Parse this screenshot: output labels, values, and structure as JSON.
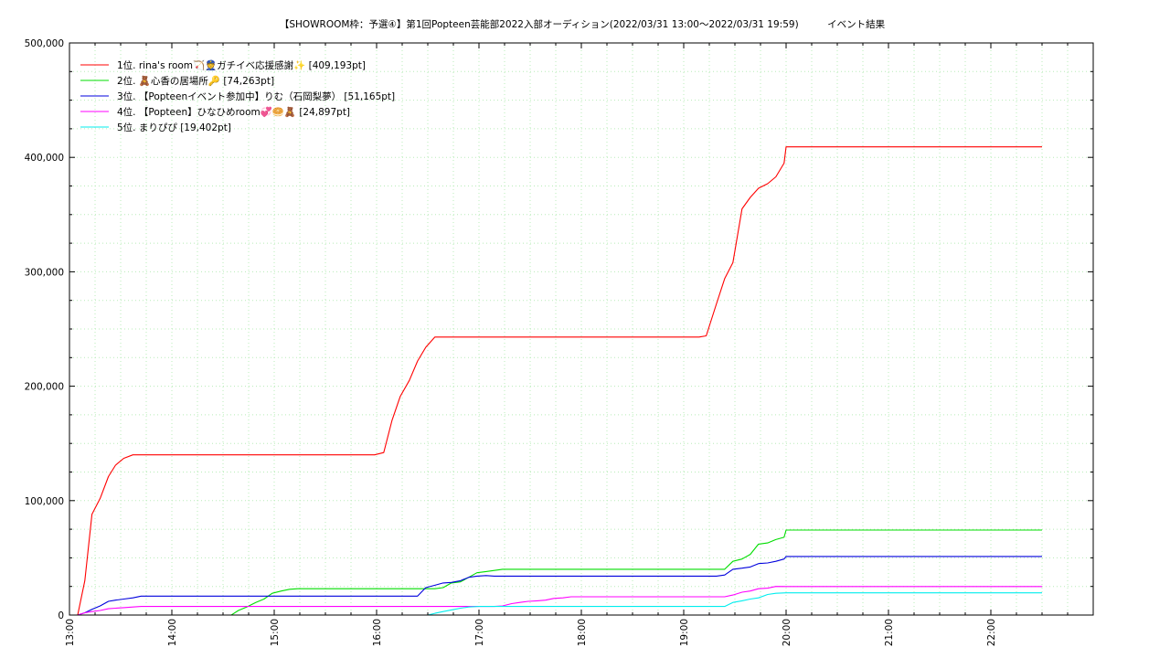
{
  "chart_data": {
    "type": "line",
    "title": "【SHOWROOM枠：予選④】第1回Popteen芸能部2022入部オーディション(2022/03/31 13:00〜2022/03/31 19:59)　　　イベント結果",
    "xlabel": "",
    "ylabel": "",
    "x_range_hours": [
      13.0,
      23.0
    ],
    "ylim": [
      0,
      500000
    ],
    "x_ticks": [
      "13:00",
      "14:00",
      "15:00",
      "16:00",
      "17:00",
      "18:00",
      "19:00",
      "20:00",
      "21:00",
      "22:00"
    ],
    "y_ticks": [
      "0",
      "100,000",
      "200,000",
      "300,000",
      "400,000",
      "500,000"
    ],
    "grid": true,
    "legend_position": "top-left",
    "series": [
      {
        "name": "1位. rina's room🏹👮ガチイベ応援感謝✨ [409,193pt]",
        "color": "#ff0000",
        "points": [
          [
            13.08,
            0
          ],
          [
            13.15,
            30000
          ],
          [
            13.22,
            88000
          ],
          [
            13.3,
            102000
          ],
          [
            13.38,
            121000
          ],
          [
            13.45,
            131000
          ],
          [
            13.53,
            137000
          ],
          [
            13.62,
            140000
          ],
          [
            14.0,
            140000
          ],
          [
            15.0,
            140000
          ],
          [
            15.98,
            140000
          ],
          [
            16.07,
            142000
          ],
          [
            16.15,
            170000
          ],
          [
            16.23,
            191000
          ],
          [
            16.32,
            205000
          ],
          [
            16.4,
            222000
          ],
          [
            16.48,
            234000
          ],
          [
            16.57,
            243000
          ],
          [
            17.0,
            243000
          ],
          [
            18.0,
            243000
          ],
          [
            19.0,
            243000
          ],
          [
            19.15,
            243000
          ],
          [
            19.22,
            244000
          ],
          [
            19.32,
            272000
          ],
          [
            19.4,
            294000
          ],
          [
            19.48,
            308000
          ],
          [
            19.57,
            355000
          ],
          [
            19.65,
            365000
          ],
          [
            19.73,
            373000
          ],
          [
            19.82,
            377000
          ],
          [
            19.9,
            383000
          ],
          [
            19.98,
            395000
          ],
          [
            20.0,
            409193
          ],
          [
            21.0,
            409193
          ],
          [
            22.0,
            409193
          ],
          [
            22.5,
            409193
          ]
        ]
      },
      {
        "name": "2位. 🧸心香の居場所🔑 [74,263pt]",
        "color": "#00dd00",
        "points": [
          [
            14.58,
            0
          ],
          [
            14.65,
            4000
          ],
          [
            14.73,
            7000
          ],
          [
            14.82,
            11000
          ],
          [
            14.9,
            14000
          ],
          [
            14.98,
            19000
          ],
          [
            15.07,
            21000
          ],
          [
            15.15,
            22500
          ],
          [
            15.23,
            23000
          ],
          [
            16.0,
            23000
          ],
          [
            16.57,
            23000
          ],
          [
            16.65,
            24000
          ],
          [
            16.73,
            28000
          ],
          [
            16.82,
            29000
          ],
          [
            16.9,
            33000
          ],
          [
            16.98,
            37000
          ],
          [
            17.07,
            38000
          ],
          [
            17.15,
            39000
          ],
          [
            17.23,
            40000
          ],
          [
            18.0,
            40000
          ],
          [
            19.0,
            40000
          ],
          [
            19.4,
            40000
          ],
          [
            19.48,
            47000
          ],
          [
            19.57,
            49000
          ],
          [
            19.65,
            53000
          ],
          [
            19.73,
            62000
          ],
          [
            19.82,
            63000
          ],
          [
            19.9,
            66000
          ],
          [
            19.98,
            68000
          ],
          [
            20.0,
            74263
          ],
          [
            21.0,
            74263
          ],
          [
            22.0,
            74263
          ],
          [
            22.5,
            74263
          ]
        ]
      },
      {
        "name": "3位. 【Popteenイベント参加中】りむ（石岡梨夢） [51,165pt]",
        "color": "#0000dd",
        "points": [
          [
            13.08,
            0
          ],
          [
            13.15,
            2000
          ],
          [
            13.22,
            5000
          ],
          [
            13.3,
            8000
          ],
          [
            13.38,
            12000
          ],
          [
            13.45,
            13000
          ],
          [
            13.53,
            14000
          ],
          [
            13.62,
            15000
          ],
          [
            13.7,
            16500
          ],
          [
            14.0,
            16500
          ],
          [
            15.0,
            16500
          ],
          [
            16.0,
            16500
          ],
          [
            16.4,
            16500
          ],
          [
            16.48,
            24000
          ],
          [
            16.57,
            26000
          ],
          [
            16.65,
            28000
          ],
          [
            16.73,
            28500
          ],
          [
            16.82,
            30000
          ],
          [
            16.9,
            33000
          ],
          [
            16.98,
            34000
          ],
          [
            17.07,
            34500
          ],
          [
            17.15,
            34000
          ],
          [
            18.0,
            34000
          ],
          [
            19.0,
            34000
          ],
          [
            19.32,
            34000
          ],
          [
            19.4,
            35000
          ],
          [
            19.48,
            40000
          ],
          [
            19.57,
            41000
          ],
          [
            19.65,
            42000
          ],
          [
            19.73,
            45000
          ],
          [
            19.82,
            45500
          ],
          [
            19.9,
            47000
          ],
          [
            19.98,
            49000
          ],
          [
            20.0,
            51165
          ],
          [
            21.0,
            51165
          ],
          [
            22.0,
            51165
          ],
          [
            22.5,
            51165
          ]
        ]
      },
      {
        "name": "4位. 【Popteen】ひなひめroom💞🥯🧸 [24,897pt]",
        "color": "#ff00ff",
        "points": [
          [
            13.08,
            0
          ],
          [
            13.15,
            2000
          ],
          [
            13.22,
            3000
          ],
          [
            13.3,
            4000
          ],
          [
            13.38,
            5500
          ],
          [
            13.45,
            6000
          ],
          [
            13.53,
            6500
          ],
          [
            13.62,
            7000
          ],
          [
            13.7,
            7500
          ],
          [
            14.0,
            7500
          ],
          [
            15.0,
            7500
          ],
          [
            16.0,
            7500
          ],
          [
            17.0,
            7500
          ],
          [
            17.15,
            7500
          ],
          [
            17.23,
            8000
          ],
          [
            17.32,
            10000
          ],
          [
            17.4,
            11000
          ],
          [
            17.48,
            12000
          ],
          [
            17.57,
            12500
          ],
          [
            17.65,
            13000
          ],
          [
            17.73,
            14500
          ],
          [
            17.82,
            15000
          ],
          [
            17.9,
            16000
          ],
          [
            18.0,
            16000
          ],
          [
            19.0,
            16000
          ],
          [
            19.4,
            16000
          ],
          [
            19.48,
            17500
          ],
          [
            19.57,
            20000
          ],
          [
            19.65,
            21000
          ],
          [
            19.73,
            23000
          ],
          [
            19.82,
            23500
          ],
          [
            19.9,
            25000
          ],
          [
            20.0,
            24897
          ],
          [
            21.0,
            24897
          ],
          [
            22.0,
            24897
          ],
          [
            22.5,
            24897
          ]
        ]
      },
      {
        "name": "5位. まりぴぴ [19,402pt]",
        "color": "#00eeee",
        "points": [
          [
            16.5,
            0
          ],
          [
            16.57,
            1500
          ],
          [
            16.65,
            3000
          ],
          [
            16.73,
            4500
          ],
          [
            16.82,
            6000
          ],
          [
            16.9,
            7000
          ],
          [
            17.0,
            7500
          ],
          [
            18.0,
            7500
          ],
          [
            19.0,
            7500
          ],
          [
            19.4,
            7500
          ],
          [
            19.48,
            11000
          ],
          [
            19.57,
            12500
          ],
          [
            19.65,
            14000
          ],
          [
            19.73,
            15000
          ],
          [
            19.82,
            18000
          ],
          [
            19.9,
            19000
          ],
          [
            20.0,
            19402
          ],
          [
            21.0,
            19402
          ],
          [
            22.0,
            19402
          ],
          [
            22.5,
            19402
          ]
        ]
      }
    ]
  }
}
